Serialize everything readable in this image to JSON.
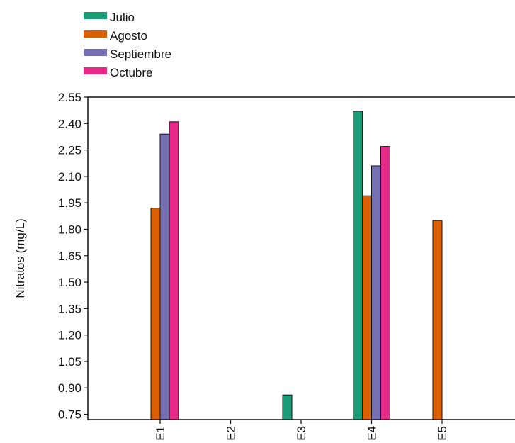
{
  "chart_data": {
    "type": "bar",
    "title": "",
    "xlabel": "",
    "ylabel": "Nitratos (mg/L)",
    "ylim": [
      0.72,
      2.55
    ],
    "yticks": [
      "0.75",
      "0.90",
      "1.05",
      "1.20",
      "1.35",
      "1.50",
      "1.65",
      "1.80",
      "1.95",
      "2.10",
      "2.25",
      "2.40",
      "2.55"
    ],
    "categories": [
      "E1",
      "E2",
      "E3",
      "E4",
      "E5"
    ],
    "legend_position": "top-left",
    "grid": false,
    "series": [
      {
        "name": "Julio",
        "color": "#1b9e77",
        "values": [
          null,
          null,
          0.86,
          2.47,
          null
        ]
      },
      {
        "name": "Agosto",
        "color": "#d95f02",
        "values": [
          1.92,
          null,
          null,
          1.99,
          1.85
        ]
      },
      {
        "name": "Septiembre",
        "color": "#7570b3",
        "values": [
          2.34,
          null,
          null,
          2.16,
          null
        ]
      },
      {
        "name": "Octubre",
        "color": "#e7298a",
        "values": [
          2.41,
          null,
          null,
          2.27,
          null
        ]
      }
    ]
  }
}
